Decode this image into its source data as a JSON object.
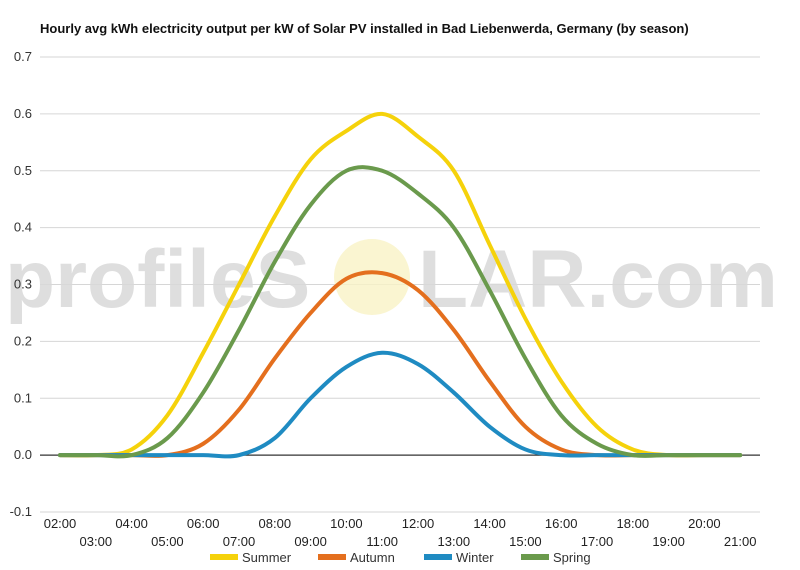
{
  "chart_data": {
    "type": "line",
    "title": "Hourly avg kWh electricity output per kW of Solar PV installed in Bad Liebenwerda, Germany (by season)",
    "xlabel": "",
    "ylabel": "",
    "ylim": [
      -0.1,
      0.7
    ],
    "yticks": [
      "0.7",
      "0.6",
      "0.5",
      "0.4",
      "0.3",
      "0.2",
      "0.1",
      "0.0",
      "-0.1"
    ],
    "ytick_values": [
      0.7,
      0.6,
      0.5,
      0.4,
      0.3,
      0.2,
      0.1,
      0.0,
      -0.1
    ],
    "x": [
      "02:00",
      "03:00",
      "04:00",
      "05:00",
      "06:00",
      "07:00",
      "08:00",
      "09:00",
      "10:00",
      "11:00",
      "12:00",
      "13:00",
      "14:00",
      "15:00",
      "16:00",
      "17:00",
      "18:00",
      "19:00",
      "20:00",
      "21:00"
    ],
    "grid": true,
    "legend_position": "bottom",
    "series": [
      {
        "name": "Summer",
        "color": "#f5d20b",
        "values": [
          0.0,
          0.0,
          0.01,
          0.07,
          0.18,
          0.3,
          0.42,
          0.52,
          0.57,
          0.6,
          0.56,
          0.5,
          0.37,
          0.24,
          0.13,
          0.05,
          0.01,
          0.0,
          0.0,
          0.0
        ]
      },
      {
        "name": "Autumn",
        "color": "#e46f1e",
        "values": [
          0.0,
          0.0,
          0.0,
          0.0,
          0.02,
          0.08,
          0.17,
          0.25,
          0.31,
          0.32,
          0.29,
          0.22,
          0.13,
          0.05,
          0.01,
          0.0,
          0.0,
          0.0,
          0.0,
          0.0
        ]
      },
      {
        "name": "Winter",
        "color": "#1f8bc2",
        "values": [
          0.0,
          0.0,
          0.0,
          0.0,
          0.0,
          0.0,
          0.03,
          0.1,
          0.155,
          0.18,
          0.16,
          0.11,
          0.05,
          0.01,
          0.0,
          0.0,
          0.0,
          0.0,
          0.0,
          0.0
        ]
      },
      {
        "name": "Spring",
        "color": "#6a9a4c",
        "values": [
          0.0,
          0.0,
          0.0,
          0.03,
          0.11,
          0.22,
          0.34,
          0.44,
          0.5,
          0.5,
          0.46,
          0.4,
          0.29,
          0.17,
          0.07,
          0.02,
          0.0,
          0.0,
          0.0,
          0.0
        ]
      }
    ]
  },
  "watermark": {
    "left": "profileS",
    "right": "LAR.com"
  }
}
